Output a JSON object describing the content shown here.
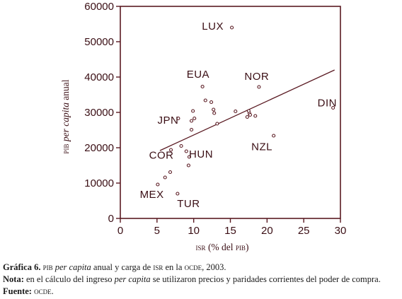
{
  "chart_data": {
    "type": "scatter",
    "xlabel_abbrev": "isr",
    "xlabel_rest": "(% del",
    "xlabel_abbrev2": "pib",
    "xlabel_close": ")",
    "ylabel_abbrev": "pib",
    "ylabel_italic": "per capita",
    "ylabel_rest": "anual",
    "xlim": [
      0,
      30
    ],
    "ylim": [
      0,
      60000
    ],
    "xticks": [
      0,
      5,
      10,
      15,
      20,
      25,
      30
    ],
    "yticks": [
      0,
      10000,
      20000,
      30000,
      40000,
      50000,
      60000
    ],
    "xtick_labels": [
      "0",
      "5",
      "10",
      "15",
      "20",
      "25",
      "30"
    ],
    "ytick_labels": [
      "0",
      "10000",
      "20000",
      "30000",
      "40000",
      "50000",
      "60000"
    ],
    "grid": false,
    "points": [
      {
        "x": 15.2,
        "y": 54000
      },
      {
        "x": 18.9,
        "y": 37200
      },
      {
        "x": 29.0,
        "y": 31300
      },
      {
        "x": 20.9,
        "y": 23400
      },
      {
        "x": 7.9,
        "y": 28300
      },
      {
        "x": 6.9,
        "y": 19400
      },
      {
        "x": 11.2,
        "y": 37300
      },
      {
        "x": 5.1,
        "y": 9600
      },
      {
        "x": 7.8,
        "y": 7000
      },
      {
        "x": 6.1,
        "y": 11600
      },
      {
        "x": 6.8,
        "y": 13100
      },
      {
        "x": 8.3,
        "y": 20500
      },
      {
        "x": 9.0,
        "y": 19000
      },
      {
        "x": 9.4,
        "y": 17400
      },
      {
        "x": 9.3,
        "y": 15000
      },
      {
        "x": 9.7,
        "y": 25100
      },
      {
        "x": 9.7,
        "y": 27600
      },
      {
        "x": 10.1,
        "y": 28300
      },
      {
        "x": 9.9,
        "y": 30400
      },
      {
        "x": 11.6,
        "y": 33400
      },
      {
        "x": 12.4,
        "y": 32900
      },
      {
        "x": 12.7,
        "y": 30800
      },
      {
        "x": 12.8,
        "y": 29800
      },
      {
        "x": 13.2,
        "y": 26800
      },
      {
        "x": 15.7,
        "y": 30300
      },
      {
        "x": 17.3,
        "y": 28700
      },
      {
        "x": 17.6,
        "y": 29700
      },
      {
        "x": 17.5,
        "y": 30400
      },
      {
        "x": 17.7,
        "y": 29300
      },
      {
        "x": 18.4,
        "y": 29000
      }
    ],
    "labels": [
      {
        "text": "LUX",
        "x": 12.6,
        "y": 53400
      },
      {
        "text": "NOR",
        "x": 18.6,
        "y": 39200
      },
      {
        "text": "DIN",
        "x": 28.2,
        "y": 31700
      },
      {
        "text": "NZL",
        "x": 19.3,
        "y": 19300
      },
      {
        "text": "EUA",
        "x": 10.6,
        "y": 39800
      },
      {
        "text": "JPN",
        "x": 6.5,
        "y": 26800
      },
      {
        "text": "COR",
        "x": 5.6,
        "y": 16900
      },
      {
        "text": "HUN",
        "x": 11.0,
        "y": 17200
      },
      {
        "text": "MEX",
        "x": 4.3,
        "y": 5800
      },
      {
        "text": "TUR",
        "x": 9.3,
        "y": 3200
      }
    ],
    "trendline": {
      "x": [
        5.4,
        29.2
      ],
      "y": [
        19200,
        42000
      ]
    }
  },
  "caption": {
    "fig_label": "Gráfica 6.",
    "fig_sc1": "pib",
    "fig_it": "per capita",
    "fig_rest1": "anual y carga de",
    "fig_sc2": "isr",
    "fig_rest2": "en la",
    "fig_sc3": "ocde",
    "fig_rest3": ", 2003.",
    "note_label": "Nota:",
    "note_a": "en el cálculo del ingreso",
    "note_it": "per capita",
    "note_b": "se utilizaron precios y paridades corrientes del poder de compra.",
    "source_label": "Fuente:",
    "source_sc": "ocde",
    "source_end": "."
  }
}
